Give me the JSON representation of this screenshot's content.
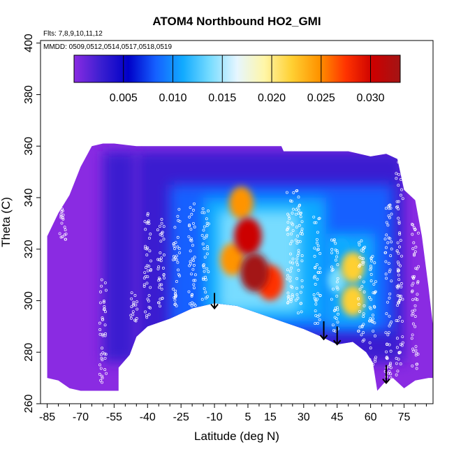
{
  "chart_data": {
    "type": "heatmap",
    "title": "ATOM4 Northbound HO2_GMI",
    "notes": {
      "flights": "Flts: 7,8,9,10,11,12",
      "dates": "MMDD: 0509,0512,0514,0517,0518,0519"
    },
    "xlabel": "Latitude (deg N)",
    "ylabel": "Theta (C)",
    "xlim": [
      -88,
      88
    ],
    "ylim": [
      260,
      401
    ],
    "xticks": [
      -85,
      -70,
      -55,
      -40,
      -25,
      -10,
      5,
      15,
      30,
      45,
      60,
      75
    ],
    "yticks": [
      260,
      280,
      300,
      320,
      340,
      360,
      380,
      400
    ],
    "colorbar": {
      "range": [
        0,
        0.033
      ],
      "ticks": [
        0.005,
        0.01,
        0.015,
        0.02,
        0.025,
        0.03
      ],
      "tick_labels": [
        "0.005",
        "0.010",
        "0.015",
        "0.020",
        "0.025",
        "0.030"
      ],
      "colors": [
        "#8a2be2",
        "#3a1fd0",
        "#0000c8",
        "#1560ff",
        "#11aaff",
        "#77dcff",
        "#e6f6ff",
        "#fff6a8",
        "#ffd033",
        "#ff9400",
        "#ff3300",
        "#cc0000",
        "#a31515"
      ]
    },
    "data_top_boundary": [
      [
        -85,
        325
      ],
      [
        -80,
        334
      ],
      [
        -75,
        341
      ],
      [
        -70,
        352
      ],
      [
        -65,
        360
      ],
      [
        -60,
        361
      ],
      [
        -55,
        361
      ],
      [
        -45,
        360
      ],
      [
        -25,
        360
      ],
      [
        0,
        360
      ],
      [
        20,
        360
      ],
      [
        21,
        358
      ],
      [
        50,
        358
      ],
      [
        60,
        356
      ],
      [
        67,
        357
      ],
      [
        72,
        355
      ],
      [
        75,
        343
      ],
      [
        80,
        339
      ],
      [
        83,
        325
      ],
      [
        86,
        305
      ],
      [
        88,
        290
      ]
    ],
    "data_bottom_boundary": [
      [
        -85,
        270
      ],
      [
        -80,
        269
      ],
      [
        -75,
        266
      ],
      [
        -70,
        265
      ],
      [
        -60,
        265
      ],
      [
        -53,
        265
      ],
      [
        -53,
        274
      ],
      [
        -48,
        279
      ],
      [
        -45,
        286
      ],
      [
        -40,
        290
      ],
      [
        -30,
        293
      ],
      [
        -20,
        297
      ],
      [
        -10,
        299
      ],
      [
        0,
        298
      ],
      [
        10,
        295
      ],
      [
        20,
        292
      ],
      [
        30,
        289
      ],
      [
        38,
        286
      ],
      [
        45,
        283
      ],
      [
        52,
        284
      ],
      [
        58,
        280
      ],
      [
        61,
        276
      ],
      [
        63,
        265
      ],
      [
        66,
        268
      ],
      [
        70,
        270
      ],
      [
        75,
        266
      ],
      [
        80,
        269
      ],
      [
        86,
        270
      ],
      [
        88,
        270
      ]
    ],
    "hotspots": [
      {
        "lat": 5,
        "theta": 325,
        "value": 0.03
      },
      {
        "lat": 8,
        "theta": 311,
        "value": 0.032
      },
      {
        "lat": 2,
        "theta": 338,
        "value": 0.024
      },
      {
        "lat": 15,
        "theta": 307,
        "value": 0.028
      },
      {
        "lat": -2,
        "theta": 316,
        "value": 0.024
      },
      {
        "lat": 52,
        "theta": 313,
        "value": 0.022
      },
      {
        "lat": 52,
        "theta": 300,
        "value": 0.022
      },
      {
        "lat": 45,
        "theta": 308,
        "value": 0.014
      },
      {
        "lat": 47,
        "theta": 320,
        "value": 0.011
      }
    ],
    "arrows": [
      {
        "lat": -10,
        "theta_top": 303,
        "theta_tip": 297
      },
      {
        "lat": 39,
        "theta_top": 292,
        "theta_tip": 285
      },
      {
        "lat": 45,
        "theta_top": 290,
        "theta_tip": 283
      },
      {
        "lat": 67,
        "theta_top": 275,
        "theta_tip": 268
      }
    ],
    "flight_tracks": [
      {
        "lat": -78,
        "theta_min": 322,
        "theta_max": 345
      },
      {
        "lat": -60,
        "theta_min": 268,
        "theta_max": 310
      },
      {
        "lat": -46,
        "theta_min": 292,
        "theta_max": 306
      },
      {
        "lat": -40,
        "theta_min": 292,
        "theta_max": 335
      },
      {
        "lat": -34,
        "theta_min": 296,
        "theta_max": 333
      },
      {
        "lat": -27,
        "theta_min": 298,
        "theta_max": 337
      },
      {
        "lat": -20,
        "theta_min": 298,
        "theta_max": 339
      },
      {
        "lat": -14,
        "theta_min": 300,
        "theta_max": 336
      },
      {
        "lat": 24,
        "theta_min": 296,
        "theta_max": 343
      },
      {
        "lat": 28,
        "theta_min": 294,
        "theta_max": 344
      },
      {
        "lat": 36,
        "theta_min": 290,
        "theta_max": 334
      },
      {
        "lat": 44,
        "theta_min": 288,
        "theta_max": 324
      },
      {
        "lat": 56,
        "theta_min": 284,
        "theta_max": 324
      },
      {
        "lat": 61,
        "theta_min": 268,
        "theta_max": 318
      },
      {
        "lat": 68,
        "theta_min": 270,
        "theta_max": 338
      },
      {
        "lat": 73,
        "theta_min": 270,
        "theta_max": 355
      },
      {
        "lat": 80,
        "theta_min": 272,
        "theta_max": 330
      }
    ]
  }
}
